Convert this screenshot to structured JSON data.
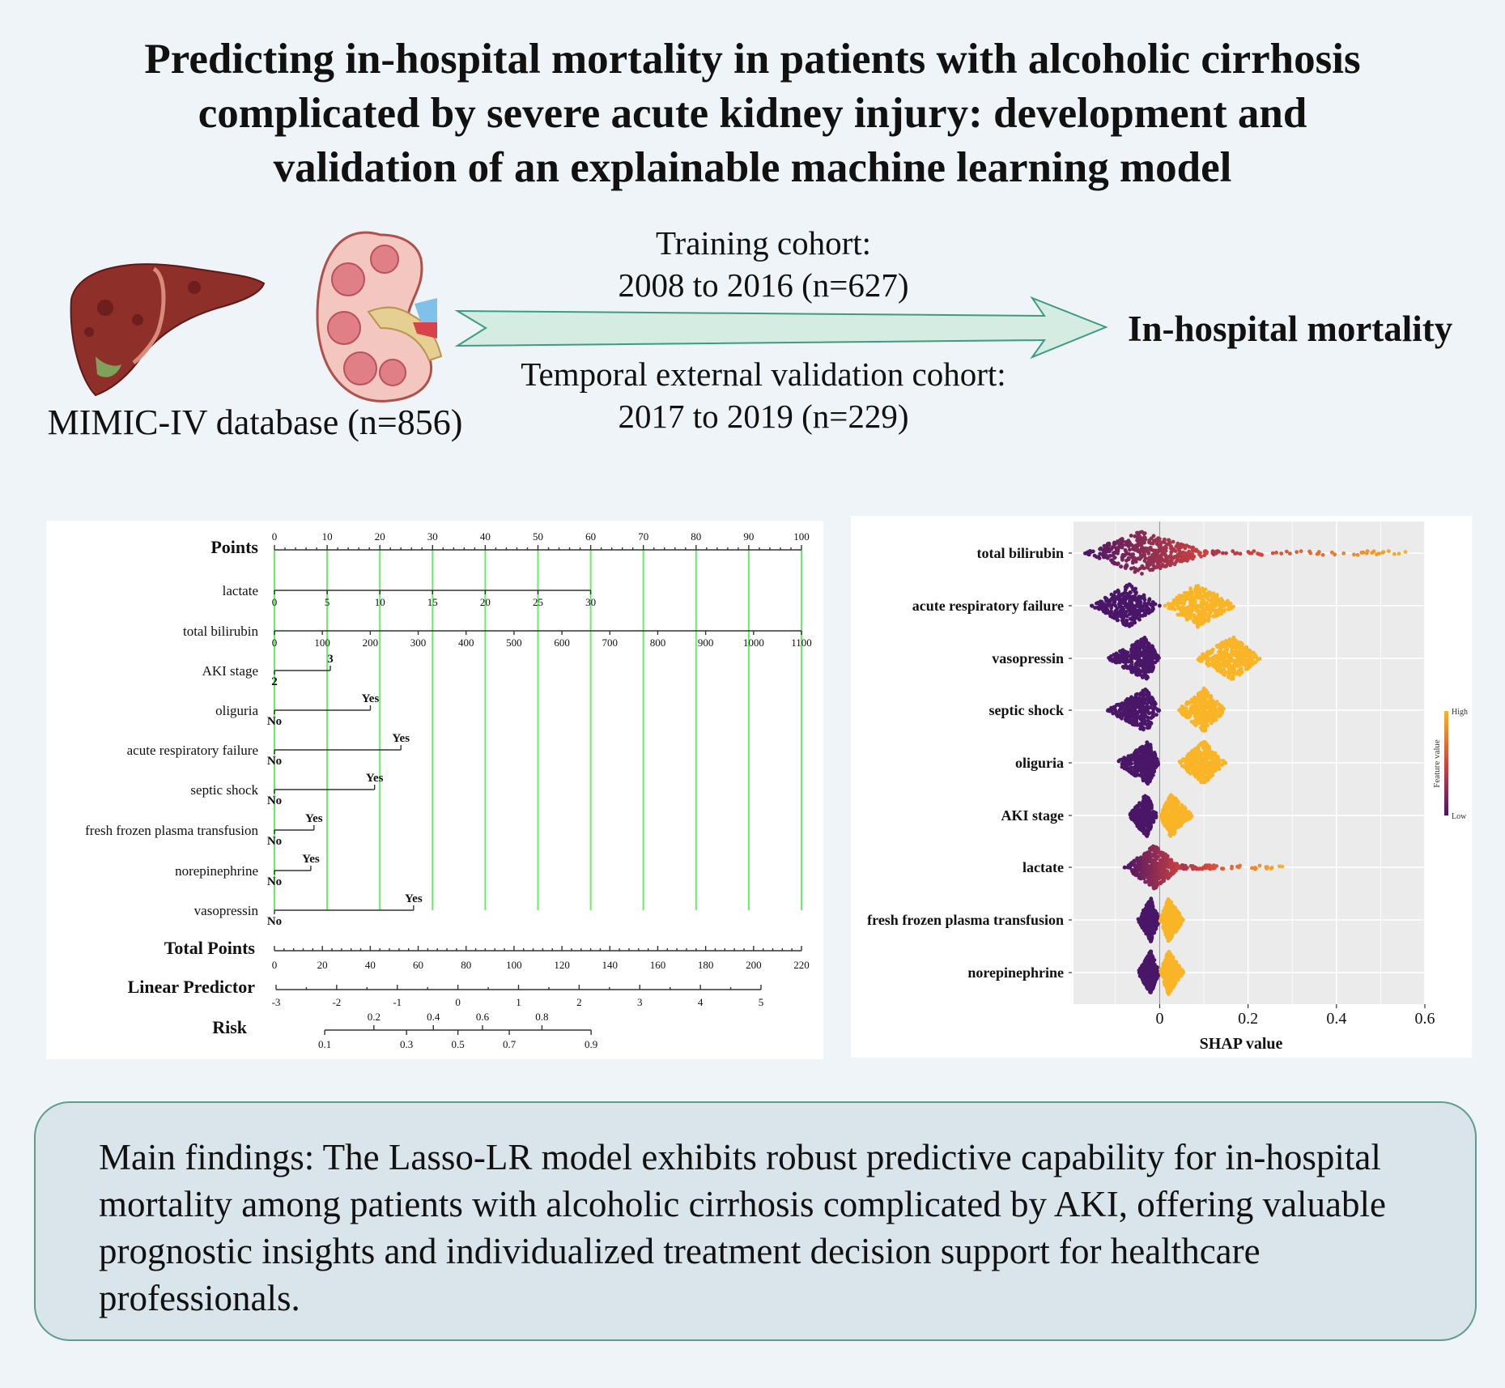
{
  "title": {
    "lines": [
      "Predicting in-hospital mortality in patients with alcoholic cirrhosis",
      "complicated by severe acute kidney injury: development and",
      "validation of an explainable machine learning model"
    ]
  },
  "flow": {
    "database_label": "MIMIC-IV database (n=856)",
    "training_label": "Training cohort:",
    "training_range": "2008 to 2016 (n=627)",
    "validation_label": "Temporal external validation cohort:",
    "validation_range": "2017 to 2019 (n=229)",
    "outcome": "In-hospital mortality",
    "icons": [
      "liver-icon",
      "kidney-icon",
      "arrow-right-icon"
    ],
    "arrow_fill": "#d5ece3",
    "arrow_stroke": "#3e9b7f"
  },
  "findings": {
    "text": "Main findings: The Lasso-LR model exhibits robust predictive capability for in-hospital mortality among patients with alcoholic cirrhosis complicated by AKI, offering valuable prognostic insights and individualized treatment decision support for healthcare professionals."
  },
  "chart_data": [
    {
      "type": "table",
      "points_axis": {
        "label": "Points",
        "ticks": [
          0,
          10,
          20,
          30,
          40,
          50,
          60,
          70,
          80,
          90,
          100
        ]
      },
      "variables": [
        {
          "name": "lactate",
          "kind": "continuous",
          "ticks": [
            0,
            5,
            10,
            15,
            20,
            25,
            30
          ],
          "max_value": 30,
          "max_points": 60
        },
        {
          "name": "total bilirubin",
          "kind": "continuous",
          "ticks": [
            0,
            100,
            200,
            300,
            400,
            500,
            600,
            700,
            800,
            900,
            1000,
            1100
          ],
          "max_value": 1100,
          "max_points": 100
        },
        {
          "name": "AKI stage",
          "kind": "categorical",
          "low_label": "2",
          "high_label": "3",
          "high_points": 10.6
        },
        {
          "name": "oliguria",
          "kind": "categorical",
          "low_label": "No",
          "high_label": "Yes",
          "high_points": 18.2
        },
        {
          "name": "acute respiratory failure",
          "kind": "categorical",
          "low_label": "No",
          "high_label": "Yes",
          "high_points": 24
        },
        {
          "name": "septic shock",
          "kind": "categorical",
          "low_label": "No",
          "high_label": "Yes",
          "high_points": 19
        },
        {
          "name": "fresh frozen plasma transfusion",
          "kind": "categorical",
          "low_label": "No",
          "high_label": "Yes",
          "high_points": 7.5
        },
        {
          "name": "norepinephrine",
          "kind": "categorical",
          "low_label": "No",
          "high_label": "Yes",
          "high_points": 6.9
        },
        {
          "name": "vasopressin",
          "kind": "categorical",
          "low_label": "No",
          "high_label": "Yes",
          "high_points": 26.4
        }
      ],
      "total_points": {
        "label": "Total Points",
        "ticks": [
          0,
          20,
          40,
          60,
          80,
          100,
          120,
          140,
          160,
          180,
          200,
          220
        ]
      },
      "linear_predictor": {
        "label": "Linear Predictor",
        "ticks": [
          -3,
          -2,
          -1,
          0,
          1,
          2,
          3,
          4,
          5
        ]
      },
      "risk": {
        "label": "Risk",
        "ticks_top": [
          0.2,
          0.4,
          0.6,
          0.8
        ],
        "ticks_bottom": [
          0.1,
          0.3,
          0.5,
          0.7,
          0.9
        ]
      },
      "reference_line_color": "#66ee66"
    },
    {
      "type": "scatter",
      "xlabel": "SHAP value",
      "xlim": [
        -0.195,
        0.6
      ],
      "xticks": [
        0,
        0.2,
        0.4,
        0.6
      ],
      "legend": {
        "title": "Feature value",
        "high": "High",
        "low": "Low",
        "placement": "right"
      },
      "colors": {
        "low": "#4a1668",
        "mid": "#d4443c",
        "high": "#f9b526"
      },
      "features": [
        {
          "name": "total bilirubin",
          "kind": "continuous",
          "min": -0.17,
          "mode": -0.045,
          "body_max": 0.12,
          "max": 0.57
        },
        {
          "name": "acute respiratory failure",
          "kind": "binary",
          "low": [
            -0.155,
            -0.07,
            0.0
          ],
          "high": [
            0.01,
            0.085,
            0.175
          ]
        },
        {
          "name": "vasopressin",
          "kind": "binary",
          "low": [
            -0.12,
            -0.03,
            0.0
          ],
          "high": [
            0.08,
            0.165,
            0.23
          ]
        },
        {
          "name": "septic shock",
          "kind": "binary",
          "low": [
            -0.12,
            -0.03,
            0.0
          ],
          "high": [
            0.04,
            0.1,
            0.15
          ]
        },
        {
          "name": "oliguria",
          "kind": "binary",
          "low": [
            -0.1,
            -0.025,
            0.0
          ],
          "high": [
            0.04,
            0.1,
            0.15
          ]
        },
        {
          "name": "AKI stage",
          "kind": "binary",
          "low": [
            -0.07,
            -0.03,
            -0.005
          ],
          "high": [
            0.0,
            0.025,
            0.075
          ]
        },
        {
          "name": "lactate",
          "kind": "continuous",
          "min": -0.08,
          "mode": -0.012,
          "body_max": 0.05,
          "max": 0.28
        },
        {
          "name": "fresh frozen plasma transfusion",
          "kind": "binary",
          "low": [
            -0.05,
            -0.02,
            0.0
          ],
          "high": [
            0.0,
            0.02,
            0.055
          ]
        },
        {
          "name": "norepinephrine",
          "kind": "binary",
          "low": [
            -0.05,
            -0.02,
            0.0
          ],
          "high": [
            0.0,
            0.02,
            0.055
          ]
        }
      ]
    }
  ]
}
